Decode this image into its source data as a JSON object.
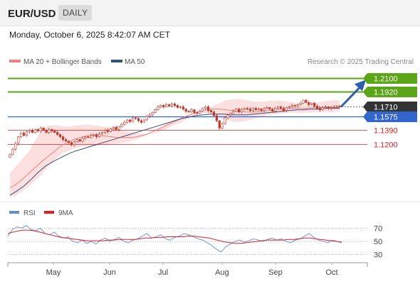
{
  "header": {
    "pair": "EUR/USD",
    "timeframe": "DAILY",
    "timestamp": "Monday, October 6, 2025 8:42:07 AM CET"
  },
  "legend": {
    "bollinger": "MA 20 + Bollinger Bands",
    "ma50": "MA 50",
    "credit": "Research © 2025 Trading Central",
    "rsi": "RSI",
    "rsi_ma": "9MA"
  },
  "colors": {
    "candle": "#c0392b",
    "bollinger_fill": "#fbd5d5",
    "bollinger_line": "#f08080",
    "ma50": "#33507a",
    "resistance": "#5aa518",
    "pivot": "#3366cc",
    "support": "#dc2020",
    "current": "#333333",
    "arrow": "#2f5fa8",
    "rsi": "#5b8fd9",
    "rsi_ma": "#e02020"
  },
  "chart_data": [
    {
      "type": "candlestick",
      "y_range": [
        1.045,
        1.224
      ],
      "x_labels": [
        "May",
        "Jun",
        "Jul",
        "Aug",
        "Sep",
        "Oct"
      ],
      "levels": [
        {
          "label": "1.2100",
          "value": 1.21,
          "kind": "resistance"
        },
        {
          "label": "1.1920",
          "value": 1.192,
          "kind": "resistance"
        },
        {
          "label": "1.1710",
          "value": 1.171,
          "kind": "current"
        },
        {
          "label": "1.1575",
          "value": 1.1575,
          "kind": "pivot"
        },
        {
          "label": "1.1390",
          "value": 1.139,
          "kind": "support"
        },
        {
          "label": "1.1200",
          "value": 1.12,
          "kind": "support"
        }
      ],
      "close": [
        1.106,
        1.113,
        1.121,
        1.13,
        1.135,
        1.132,
        1.137,
        1.139,
        1.136,
        1.14,
        1.138,
        1.142,
        1.139,
        1.136,
        1.14,
        1.138,
        1.136,
        1.133,
        1.13,
        1.126,
        1.124,
        1.122,
        1.119,
        1.123,
        1.126,
        1.124,
        1.128,
        1.13,
        1.129,
        1.132,
        1.133,
        1.13,
        1.134,
        1.136,
        1.139,
        1.137,
        1.141,
        1.143,
        1.14,
        1.144,
        1.147,
        1.15,
        1.153,
        1.151,
        1.156,
        1.155,
        1.152,
        1.15,
        1.153,
        1.158,
        1.16,
        1.163,
        1.167,
        1.171,
        1.173,
        1.171,
        1.174,
        1.172,
        1.175,
        1.173,
        1.17,
        1.171,
        1.168,
        1.165,
        1.164,
        1.167,
        1.163,
        1.162,
        1.165,
        1.169,
        1.171,
        1.166,
        1.164,
        1.159,
        1.152,
        1.142,
        1.148,
        1.156,
        1.16,
        1.162,
        1.165,
        1.168,
        1.164,
        1.167,
        1.169,
        1.168,
        1.166,
        1.169,
        1.167,
        1.168,
        1.166,
        1.169,
        1.17,
        1.168,
        1.165,
        1.169,
        1.171,
        1.169,
        1.166,
        1.17,
        1.171,
        1.173,
        1.172,
        1.174,
        1.176,
        1.18,
        1.177,
        1.174,
        1.176,
        1.172,
        1.169,
        1.167,
        1.17,
        1.171,
        1.169,
        1.17,
        1.171,
        1.172,
        1.171
      ],
      "ma20_upper": [
        1.08,
        1.09,
        1.1,
        1.11,
        1.125,
        1.14,
        1.145,
        1.146,
        1.145,
        1.144,
        1.145,
        1.146,
        1.147,
        1.146,
        1.145,
        1.144,
        1.142,
        1.14,
        1.138,
        1.136,
        1.135,
        1.134,
        1.134,
        1.135,
        1.138,
        1.142,
        1.147,
        1.15,
        1.154,
        1.159,
        1.163,
        1.168,
        1.172,
        1.176,
        1.18,
        1.181,
        1.182,
        1.181,
        1.179,
        1.178,
        1.178,
        1.179,
        1.18,
        1.179,
        1.178,
        1.176,
        1.174,
        1.174,
        1.175,
        1.178,
        1.179,
        1.18,
        1.18
      ],
      "ma20_middle": [
        1.06,
        1.065,
        1.072,
        1.08,
        1.088,
        1.096,
        1.103,
        1.11,
        1.117,
        1.122,
        1.126,
        1.129,
        1.131,
        1.132,
        1.132,
        1.131,
        1.13,
        1.129,
        1.129,
        1.129,
        1.13,
        1.132,
        1.135,
        1.139,
        1.143,
        1.147,
        1.151,
        1.155,
        1.159,
        1.162,
        1.165,
        1.167,
        1.168,
        1.168,
        1.167,
        1.166,
        1.165,
        1.164,
        1.164,
        1.164,
        1.165,
        1.166,
        1.167,
        1.168,
        1.169,
        1.169,
        1.169,
        1.169,
        1.17,
        1.17,
        1.17,
        1.17,
        1.17
      ],
      "ma20_lower": [
        1.048,
        1.05,
        1.056,
        1.062,
        1.07,
        1.078,
        1.09,
        1.098,
        1.106,
        1.11,
        1.114,
        1.116,
        1.117,
        1.117,
        1.118,
        1.119,
        1.12,
        1.121,
        1.122,
        1.124,
        1.127,
        1.13,
        1.134,
        1.139,
        1.144,
        1.149,
        1.153,
        1.157,
        1.16,
        1.162,
        1.163,
        1.162,
        1.16,
        1.156,
        1.153,
        1.151,
        1.15,
        1.151,
        1.153,
        1.156,
        1.158,
        1.16,
        1.161,
        1.162,
        1.163,
        1.163,
        1.163,
        1.163,
        1.164,
        1.164,
        1.164,
        1.164,
        1.165
      ],
      "ma50": [
        1.05,
        1.056,
        1.063,
        1.072,
        1.082,
        1.09,
        1.096,
        1.101,
        1.106,
        1.11,
        1.113,
        1.116,
        1.119,
        1.122,
        1.125,
        1.128,
        1.131,
        1.134,
        1.137,
        1.14,
        1.143,
        1.146,
        1.149,
        1.152,
        1.155,
        1.157,
        1.159,
        1.16,
        1.161,
        1.161,
        1.161,
        1.16,
        1.16,
        1.16,
        1.161,
        1.162,
        1.163,
        1.164,
        1.165,
        1.166,
        1.167,
        1.167,
        1.168,
        1.168,
        1.169,
        1.169,
        1.169
      ]
    },
    {
      "type": "line",
      "y_range": [
        20,
        80
      ],
      "y_ticks": [
        "70",
        "50",
        "30"
      ],
      "y_tick_values": [
        70,
        50,
        30
      ],
      "series": [
        {
          "name": "RSI",
          "values": [
            58,
            68,
            72,
            70,
            74,
            68,
            66,
            70,
            62,
            60,
            64,
            58,
            55,
            57,
            50,
            48,
            52,
            47,
            50,
            46,
            52,
            55,
            50,
            53,
            56,
            50,
            48,
            52,
            54,
            58,
            62,
            55,
            57,
            60,
            54,
            52,
            56,
            58,
            62,
            60,
            57,
            54,
            52,
            48,
            44,
            38,
            34,
            42,
            46,
            50,
            52,
            49,
            51,
            54,
            52,
            50,
            53,
            55,
            52,
            54,
            50,
            48,
            52,
            54,
            58,
            62,
            56,
            52,
            50,
            48,
            52,
            50,
            48
          ]
        },
        {
          "name": "9MA",
          "values": [
            62,
            64,
            66,
            67,
            67,
            66,
            64,
            62,
            60,
            58,
            56,
            55,
            54,
            53,
            52,
            51,
            51,
            51,
            51,
            52,
            52,
            53,
            53,
            53,
            53,
            54,
            55,
            55,
            56,
            56,
            57,
            57,
            57,
            57,
            58,
            58,
            57,
            56,
            55,
            53,
            51,
            49,
            48,
            47,
            47,
            48,
            49,
            50,
            51,
            52,
            52,
            52,
            52,
            53,
            53,
            54,
            55,
            55,
            54,
            53,
            52,
            51,
            50,
            49
          ]
        }
      ]
    }
  ]
}
